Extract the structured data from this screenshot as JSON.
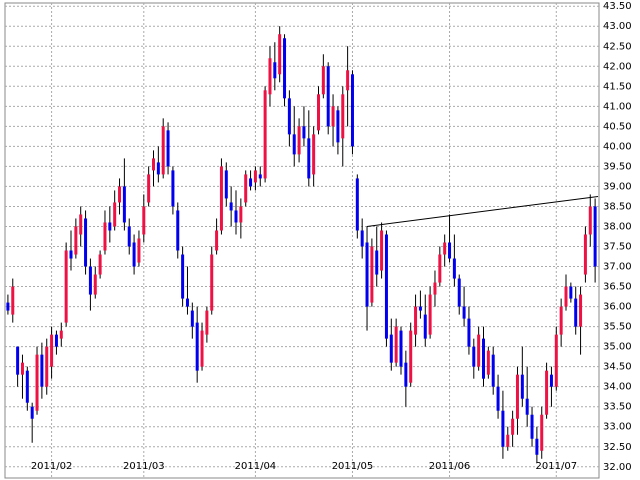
{
  "chart_data": {
    "type": "candlestick",
    "up_color": "#ee1144",
    "down_color": "#0000ee",
    "open": [
      36.1,
      35.8,
      35.0,
      34.3,
      34.4,
      33.5,
      33.4,
      34.8,
      34.0,
      34.5,
      35.3,
      35.2,
      35.6,
      37.4,
      37.3,
      37.8,
      38.2,
      37.0,
      36.3,
      36.8,
      37.4,
      38.1,
      38.0,
      38.6,
      39.0,
      38.0,
      37.6,
      37.1,
      37.8,
      38.6,
      39.4,
      39.6,
      39.3,
      40.4,
      39.4,
      38.4,
      37.3,
      36.2,
      35.9,
      35.6,
      34.5,
      35.3,
      35.9,
      37.4,
      37.9,
      39.4,
      38.6,
      38.4,
      38.1,
      38.6,
      39.2,
      39.1,
      39.3,
      39.2,
      41.3,
      42.1,
      41.8,
      42.7,
      41.2,
      40.3,
      39.8,
      40.5,
      40.2,
      39.3,
      40.4,
      41.3,
      42.0,
      40.5,
      40.9,
      40.2,
      41.4,
      41.8,
      39.2,
      37.9,
      37.6,
      36.1,
      37.4,
      36.9,
      37.8,
      35.3,
      34.6,
      35.4,
      34.6,
      34.1,
      35.3,
      36.0,
      35.8,
      35.3,
      36.3,
      36.6,
      37.3,
      37.6,
      37.2,
      36.7,
      36.0,
      35.7,
      35.0,
      34.5,
      35.2,
      34.3,
      34.8,
      34.0,
      33.4,
      32.5,
      32.8,
      33.2,
      34.3,
      33.7,
      33.3,
      32.7,
      32.4,
      33.3,
      34.3,
      34.0,
      35.3,
      36.0,
      36.5,
      36.2,
      35.5,
      36.8,
      37.8,
      38.5
    ],
    "high": [
      36.3,
      36.7,
      35.0,
      34.8,
      34.5,
      33.6,
      35.0,
      35.1,
      35.2,
      35.5,
      35.4,
      35.6,
      37.6,
      37.9,
      38.2,
      38.5,
      38.4,
      37.2,
      37.0,
      37.4,
      38.4,
      38.5,
      38.9,
      39.2,
      39.7,
      38.2,
      37.8,
      37.9,
      38.8,
      39.5,
      39.9,
      40.0,
      40.7,
      40.6,
      39.5,
      38.6,
      37.5,
      37.0,
      36.1,
      36.0,
      35.6,
      36.0,
      37.5,
      38.2,
      39.7,
      39.6,
      39.0,
      38.9,
      38.7,
      39.4,
      39.4,
      39.5,
      39.5,
      41.5,
      42.5,
      42.6,
      43.0,
      42.8,
      41.4,
      41.0,
      40.7,
      41.0,
      40.9,
      40.5,
      41.5,
      42.3,
      42.1,
      41.3,
      41.0,
      41.5,
      42.5,
      41.9,
      39.3,
      38.2,
      38.0,
      37.7,
      38.0,
      38.1,
      37.9,
      35.7,
      35.7,
      35.5,
      34.9,
      35.6,
      36.3,
      36.4,
      36.3,
      36.5,
      36.9,
      37.5,
      37.8,
      38.3,
      37.8,
      36.8,
      36.5,
      36.0,
      35.2,
      35.5,
      35.5,
      35.0,
      35.0,
      34.3,
      33.9,
      33.0,
      33.4,
      34.5,
      35.0,
      34.5,
      33.5,
      33.0,
      33.5,
      34.6,
      34.5,
      35.5,
      36.2,
      36.8,
      36.6,
      36.5,
      36.5,
      38.0,
      38.8,
      38.7
    ],
    "low": [
      35.8,
      35.6,
      34.0,
      33.7,
      33.4,
      32.6,
      33.3,
      33.7,
      33.8,
      34.2,
      34.8,
      35.0,
      35.5,
      36.9,
      37.2,
      37.5,
      36.8,
      35.9,
      36.2,
      36.7,
      37.3,
      37.6,
      37.9,
      38.3,
      37.9,
      37.3,
      36.8,
      37.0,
      37.6,
      38.5,
      39.0,
      39.1,
      39.2,
      39.3,
      38.3,
      37.2,
      36.0,
      35.8,
      35.2,
      34.1,
      34.4,
      35.1,
      35.8,
      37.3,
      37.8,
      38.5,
      38.0,
      37.8,
      37.7,
      38.5,
      38.9,
      38.9,
      39.0,
      39.1,
      41.0,
      41.4,
      41.6,
      41.0,
      40.0,
      39.5,
      39.6,
      40.0,
      39.0,
      39.0,
      40.3,
      41.2,
      40.3,
      40.0,
      39.8,
      39.5,
      40.5,
      39.8,
      37.7,
      37.2,
      35.4,
      36.0,
      36.5,
      36.7,
      35.0,
      34.4,
      34.5,
      34.3,
      33.5,
      34.0,
      35.0,
      35.7,
      35.0,
      35.2,
      36.0,
      36.5,
      37.0,
      37.1,
      36.5,
      35.8,
      35.5,
      34.8,
      34.2,
      34.4,
      34.0,
      34.2,
      33.8,
      33.2,
      32.2,
      32.4,
      32.5,
      32.8,
      33.5,
      33.0,
      32.5,
      32.1,
      32.2,
      33.2,
      33.5,
      33.9,
      35.0,
      35.9,
      36.1,
      35.3,
      34.8,
      36.6,
      37.5,
      36.6
    ],
    "close": [
      35.9,
      36.5,
      34.3,
      34.6,
      33.6,
      33.2,
      34.8,
      34.0,
      35.0,
      35.3,
      35.0,
      35.4,
      37.4,
      37.2,
      38.0,
      38.3,
      37.0,
      36.3,
      36.8,
      37.3,
      38.1,
      37.9,
      38.6,
      39.0,
      38.1,
      37.5,
      37.0,
      37.7,
      38.5,
      39.3,
      39.7,
      39.3,
      40.5,
      39.5,
      38.5,
      37.4,
      36.2,
      36.0,
      35.5,
      34.4,
      35.4,
      35.9,
      37.3,
      37.9,
      39.5,
      38.7,
      38.4,
      38.1,
      38.5,
      39.3,
      39.0,
      39.4,
      39.2,
      41.4,
      42.2,
      41.7,
      42.8,
      41.2,
      40.3,
      39.8,
      40.5,
      40.2,
      39.2,
      40.3,
      41.3,
      42.0,
      40.5,
      41.0,
      40.1,
      41.3,
      41.9,
      40.0,
      37.9,
      37.5,
      36.0,
      37.5,
      36.8,
      37.9,
      35.2,
      34.6,
      35.5,
      34.5,
      34.0,
      35.4,
      36.0,
      35.9,
      35.2,
      36.3,
      36.6,
      37.3,
      37.6,
      37.2,
      36.7,
      36.0,
      35.7,
      35.0,
      34.5,
      35.3,
      34.2,
      34.9,
      34.0,
      33.4,
      32.5,
      32.8,
      33.2,
      34.3,
      33.7,
      33.3,
      32.7,
      32.3,
      33.3,
      34.4,
      34.0,
      35.3,
      36.0,
      36.5,
      36.2,
      35.5,
      36.3,
      37.8,
      38.5,
      37.0
    ],
    "xlim": [
      -0.6,
      121.8
    ],
    "xticks": [
      {
        "value": 9,
        "label": "2011/02"
      },
      {
        "value": 28,
        "label": "2011/03"
      },
      {
        "value": 51,
        "label": "2011/04"
      },
      {
        "value": 71,
        "label": "2011/05"
      },
      {
        "value": 91,
        "label": "2011/06"
      },
      {
        "value": 113,
        "label": "2011/07"
      }
    ],
    "ylim": [
      31.72,
      43.58
    ],
    "yticks": [
      {
        "value": 32,
        "label": "32.00"
      },
      {
        "value": 32.5,
        "label": "32.50"
      },
      {
        "value": 33,
        "label": "33.00"
      },
      {
        "value": 33.5,
        "label": "33.50"
      },
      {
        "value": 34,
        "label": "34.00"
      },
      {
        "value": 34.5,
        "label": "34.50"
      },
      {
        "value": 35,
        "label": "35.00"
      },
      {
        "value": 35.5,
        "label": "35.50"
      },
      {
        "value": 36,
        "label": "36.00"
      },
      {
        "value": 36.5,
        "label": "36.50"
      },
      {
        "value": 37,
        "label": "37.00"
      },
      {
        "value": 37.5,
        "label": "37.50"
      },
      {
        "value": 38,
        "label": "38.00"
      },
      {
        "value": 38.5,
        "label": "38.50"
      },
      {
        "value": 39,
        "label": "39.00"
      },
      {
        "value": 39.5,
        "label": "39.50"
      },
      {
        "value": 40,
        "label": "40.00"
      },
      {
        "value": 40.5,
        "label": "40.50"
      },
      {
        "value": 41,
        "label": "41.00"
      },
      {
        "value": 41.5,
        "label": "41.50"
      },
      {
        "value": 42,
        "label": "42.00"
      },
      {
        "value": 42.5,
        "label": "42.50"
      },
      {
        "value": 43,
        "label": "43.00"
      },
      {
        "value": 43.5,
        "label": "43.50"
      }
    ],
    "grid": true,
    "trendline": {
      "x": [
        74,
        121.6
      ],
      "y": [
        38.0,
        38.75
      ],
      "color": "#000000"
    }
  }
}
